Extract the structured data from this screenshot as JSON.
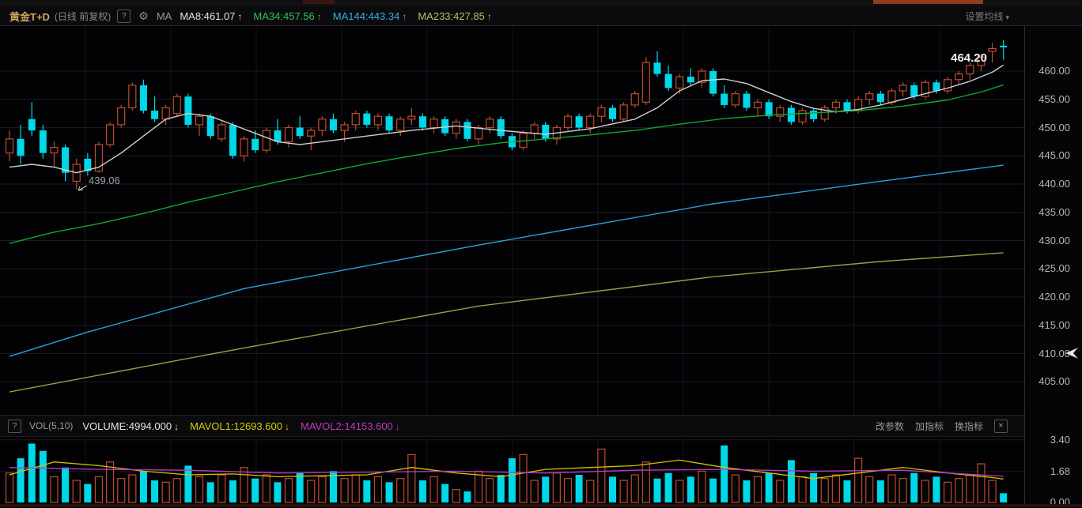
{
  "header": {
    "title": "黄金T+D",
    "subtitle": "(日线 前复权)",
    "help_label": "?",
    "gear_icon": "⚙",
    "ma_label": "MA",
    "ma_items": [
      {
        "label": "MA8:461.07",
        "arrow": "↑",
        "color": "#e6e6e6"
      },
      {
        "label": "MA34:457.56",
        "arrow": "↑",
        "color": "#2ec45a"
      },
      {
        "label": "MA144:443.34",
        "arrow": "↑",
        "color": "#36aee8"
      },
      {
        "label": "MA233:427.85",
        "arrow": "↑",
        "color": "#c5bd6b"
      }
    ],
    "settings_label": "设置均线",
    "settings_caret": "▾"
  },
  "volume_header": {
    "help_label": "?",
    "indicator_label": "VOL(5,10)",
    "items": [
      {
        "label": "VOLUME:4994.000",
        "arrow": "↓",
        "color": "#e6e6e6"
      },
      {
        "label": "MAVOL1:12693.600",
        "arrow": "↓",
        "color": "#d4ce00"
      },
      {
        "label": "MAVOL2:14153.600",
        "arrow": "↓",
        "color": "#c238c2"
      }
    ],
    "actions": [
      "改参数",
      "加指标",
      "换指标"
    ],
    "close_label": "×"
  },
  "annotations": {
    "last_price": "464.20",
    "low_label": "439.06"
  },
  "chart_data": {
    "type": "candlestick",
    "title": "黄金T+D 日线 前复权",
    "legend": [
      "MA8",
      "MA34",
      "MA144",
      "MA233",
      "VOLUME",
      "MAVOL1",
      "MAVOL2"
    ],
    "style": {
      "up_color": "#bf4a2e",
      "down_color": "#00d8e8",
      "grid_color": "#1b1b22",
      "vgrid_color": "#14141a"
    },
    "price_axis": {
      "ticks": [
        "460.00",
        "455.00",
        "450.00",
        "445.00",
        "440.00",
        "435.00",
        "430.00",
        "425.00",
        "420.00",
        "415.00",
        "410.00",
        "405.00"
      ],
      "values": [
        460,
        455,
        450,
        445,
        440,
        435,
        430,
        425,
        420,
        415,
        410,
        405
      ],
      "min": 400,
      "max": 467
    },
    "volume_axis": {
      "ticks": [
        "3.40",
        "1.68",
        "0.00"
      ],
      "values": [
        3.4,
        1.68,
        0.0
      ],
      "unit_scale": 10000
    },
    "last_close": 464.2,
    "shown_low": 439.06,
    "candles": [
      [
        445.5,
        449.5,
        444.0,
        448.0
      ],
      [
        448.0,
        450.5,
        443.5,
        445.0
      ],
      [
        451.5,
        454.5,
        448.5,
        449.5
      ],
      [
        449.5,
        450.5,
        444.5,
        445.5
      ],
      [
        445.5,
        447.5,
        443.0,
        446.5
      ],
      [
        446.5,
        447.0,
        440.5,
        442.0
      ],
      [
        440.5,
        444.5,
        439.06,
        443.5
      ],
      [
        444.5,
        445.5,
        441.5,
        442.3
      ],
      [
        442.3,
        447.5,
        442.0,
        447.0
      ],
      [
        447.0,
        451.0,
        446.5,
        450.5
      ],
      [
        450.5,
        454.0,
        450.0,
        453.5
      ],
      [
        453.5,
        458.0,
        453.0,
        457.5
      ],
      [
        457.5,
        458.5,
        452.5,
        453.0
      ],
      [
        453.0,
        455.5,
        451.0,
        451.5
      ],
      [
        451.5,
        454.0,
        450.5,
        453.5
      ],
      [
        452.5,
        456.0,
        452.0,
        455.5
      ],
      [
        455.5,
        456.0,
        450.0,
        450.5
      ],
      [
        450.5,
        452.5,
        448.5,
        452.0
      ],
      [
        452.0,
        452.5,
        448.0,
        448.5
      ],
      [
        448.0,
        451.0,
        447.5,
        450.5
      ],
      [
        450.5,
        451.0,
        444.5,
        445.0
      ],
      [
        445.0,
        448.5,
        444.0,
        448.0
      ],
      [
        448.0,
        449.5,
        445.5,
        446.0
      ],
      [
        446.0,
        450.0,
        445.5,
        449.5
      ],
      [
        449.5,
        451.5,
        447.0,
        447.5
      ],
      [
        447.5,
        450.5,
        446.5,
        450.0
      ],
      [
        450.0,
        452.0,
        448.0,
        448.5
      ],
      [
        448.5,
        450.0,
        446.0,
        449.5
      ],
      [
        449.5,
        452.0,
        448.5,
        451.5
      ],
      [
        451.5,
        452.5,
        449.0,
        449.5
      ],
      [
        449.5,
        451.0,
        447.5,
        450.5
      ],
      [
        450.5,
        453.0,
        449.5,
        452.5
      ],
      [
        452.5,
        453.0,
        450.0,
        450.5
      ],
      [
        450.5,
        452.5,
        449.5,
        452.0
      ],
      [
        452.0,
        452.5,
        449.0,
        449.5
      ],
      [
        449.5,
        452.0,
        448.5,
        451.5
      ],
      [
        451.5,
        453.5,
        450.5,
        452.0
      ],
      [
        452.0,
        452.5,
        449.5,
        450.0
      ],
      [
        450.0,
        452.0,
        449.0,
        451.5
      ],
      [
        451.5,
        452.0,
        448.5,
        449.0
      ],
      [
        449.0,
        451.5,
        448.0,
        451.0
      ],
      [
        451.0,
        451.5,
        447.5,
        448.0
      ],
      [
        448.0,
        450.5,
        447.0,
        450.0
      ],
      [
        450.0,
        452.0,
        449.0,
        451.5
      ],
      [
        451.5,
        452.0,
        448.0,
        448.5
      ],
      [
        448.5,
        449.0,
        446.0,
        446.5
      ],
      [
        446.5,
        449.5,
        446.0,
        449.0
      ],
      [
        449.0,
        451.0,
        448.0,
        450.5
      ],
      [
        450.5,
        451.0,
        447.5,
        448.0
      ],
      [
        448.0,
        450.5,
        447.0,
        450.0
      ],
      [
        450.0,
        452.5,
        449.5,
        452.0
      ],
      [
        452.0,
        452.5,
        449.5,
        450.0
      ],
      [
        450.0,
        452.5,
        449.0,
        452.0
      ],
      [
        452.0,
        454.0,
        451.0,
        453.5
      ],
      [
        453.5,
        454.0,
        451.0,
        451.5
      ],
      [
        451.5,
        454.5,
        451.0,
        454.0
      ],
      [
        454.0,
        456.5,
        453.5,
        456.0
      ],
      [
        454.5,
        462.5,
        454.0,
        461.5
      ],
      [
        461.5,
        463.5,
        459.0,
        459.5
      ],
      [
        459.5,
        461.0,
        456.5,
        457.0
      ],
      [
        457.0,
        459.5,
        456.0,
        459.0
      ],
      [
        459.0,
        460.5,
        457.5,
        458.0
      ],
      [
        458.0,
        460.5,
        457.0,
        460.0
      ],
      [
        460.0,
        460.5,
        455.5,
        456.0
      ],
      [
        456.0,
        457.5,
        453.5,
        454.0
      ],
      [
        454.0,
        456.5,
        453.5,
        456.0
      ],
      [
        456.0,
        456.5,
        453.0,
        453.5
      ],
      [
        453.5,
        455.0,
        452.0,
        454.5
      ],
      [
        454.5,
        455.0,
        451.5,
        452.0
      ],
      [
        452.0,
        454.0,
        451.0,
        453.5
      ],
      [
        453.5,
        454.0,
        450.5,
        451.0
      ],
      [
        451.0,
        453.5,
        450.5,
        453.0
      ],
      [
        453.0,
        453.5,
        451.0,
        451.5
      ],
      [
        451.5,
        454.0,
        451.0,
        453.5
      ],
      [
        453.5,
        455.0,
        452.5,
        454.5
      ],
      [
        454.5,
        455.0,
        452.5,
        453.0
      ],
      [
        453.0,
        455.5,
        452.5,
        455.0
      ],
      [
        455.0,
        456.5,
        454.0,
        456.0
      ],
      [
        456.0,
        456.5,
        454.0,
        454.5
      ],
      [
        454.5,
        457.0,
        454.0,
        456.5
      ],
      [
        456.5,
        458.0,
        455.5,
        457.5
      ],
      [
        457.5,
        458.0,
        455.0,
        455.5
      ],
      [
        455.5,
        458.5,
        455.0,
        458.0
      ],
      [
        458.0,
        458.5,
        456.0,
        456.5
      ],
      [
        456.5,
        459.0,
        456.0,
        458.5
      ],
      [
        458.5,
        460.0,
        457.5,
        459.5
      ],
      [
        459.5,
        461.5,
        458.5,
        461.0
      ],
      [
        461.0,
        463.0,
        460.0,
        462.5
      ],
      [
        463.5,
        465.0,
        461.5,
        464.0
      ],
      [
        464.5,
        465.5,
        462.0,
        464.2
      ]
    ],
    "volumes": [
      1.6,
      2.4,
      3.2,
      2.8,
      1.4,
      1.9,
      1.2,
      1.0,
      1.4,
      2.2,
      1.3,
      1.5,
      1.7,
      1.2,
      1.1,
      1.3,
      2.0,
      1.4,
      1.1,
      1.5,
      1.2,
      1.9,
      1.3,
      1.5,
      1.1,
      1.3,
      1.6,
      1.2,
      1.4,
      1.7,
      1.3,
      1.5,
      1.2,
      1.4,
      1.1,
      1.3,
      2.6,
      1.2,
      1.4,
      1.0,
      0.7,
      0.6,
      1.7,
      1.3,
      1.5,
      2.4,
      2.6,
      1.2,
      1.4,
      1.6,
      1.3,
      1.5,
      1.2,
      2.9,
      1.4,
      1.2,
      1.5,
      2.2,
      1.3,
      1.6,
      1.2,
      1.4,
      1.7,
      1.3,
      3.1,
      1.5,
      1.2,
      1.4,
      1.6,
      1.2,
      2.3,
      1.4,
      1.6,
      1.3,
      1.5,
      1.2,
      2.4,
      1.4,
      1.2,
      1.5,
      1.3,
      1.6,
      1.2,
      1.4,
      1.1,
      1.3,
      1.5,
      2.1,
      1.2,
      0.5
    ],
    "ma_lines": [
      {
        "name": "MA8",
        "color": "#d0d0d0",
        "points": [
          [
            0,
            443
          ],
          [
            2,
            443.5
          ],
          [
            4,
            443
          ],
          [
            6,
            442
          ],
          [
            8,
            443
          ],
          [
            10,
            445.5
          ],
          [
            12,
            448.5
          ],
          [
            14,
            451.5
          ],
          [
            16,
            452.5
          ],
          [
            18,
            452
          ],
          [
            20,
            450.5
          ],
          [
            22,
            449
          ],
          [
            24,
            447.5
          ],
          [
            26,
            447
          ],
          [
            28,
            447.5
          ],
          [
            32,
            448.5
          ],
          [
            36,
            449.5
          ],
          [
            40,
            450.3
          ],
          [
            44,
            449.5
          ],
          [
            48,
            448.8
          ],
          [
            52,
            449.8
          ],
          [
            56,
            451.5
          ],
          [
            58,
            453.5
          ],
          [
            60,
            456.5
          ],
          [
            62,
            458.3
          ],
          [
            64,
            458.6
          ],
          [
            66,
            457.8
          ],
          [
            68,
            456.2
          ],
          [
            70,
            454.6
          ],
          [
            72,
            453.4
          ],
          [
            74,
            452.8
          ],
          [
            76,
            453.2
          ],
          [
            78,
            454
          ],
          [
            80,
            455
          ],
          [
            82,
            456
          ],
          [
            84,
            457
          ],
          [
            86,
            458.2
          ],
          [
            88,
            459.8
          ],
          [
            89,
            461.07
          ]
        ]
      },
      {
        "name": "MA34",
        "color": "#0da832",
        "points": [
          [
            0,
            429.5
          ],
          [
            4,
            431.5
          ],
          [
            8,
            433
          ],
          [
            12,
            434.8
          ],
          [
            16,
            436.8
          ],
          [
            20,
            438.6
          ],
          [
            24,
            440.4
          ],
          [
            28,
            442
          ],
          [
            32,
            443.6
          ],
          [
            36,
            445
          ],
          [
            40,
            446.3
          ],
          [
            44,
            447.3
          ],
          [
            48,
            448
          ],
          [
            52,
            448.7
          ],
          [
            56,
            449.5
          ],
          [
            60,
            450.6
          ],
          [
            64,
            451.6
          ],
          [
            68,
            452.2
          ],
          [
            72,
            452.6
          ],
          [
            76,
            453
          ],
          [
            80,
            453.8
          ],
          [
            84,
            454.9
          ],
          [
            87,
            456.3
          ],
          [
            89,
            457.56
          ]
        ]
      },
      {
        "name": "MA144",
        "color": "#2e9fd6",
        "points": [
          [
            0,
            409.5
          ],
          [
            7,
            413.8
          ],
          [
            21,
            421.5
          ],
          [
            42,
            429.2
          ],
          [
            63,
            436.5
          ],
          [
            78,
            440.5
          ],
          [
            89,
            443.34
          ]
        ]
      },
      {
        "name": "MA233",
        "color": "#a09a4a",
        "points": [
          [
            0,
            403.2
          ],
          [
            21,
            411
          ],
          [
            42,
            418.4
          ],
          [
            63,
            423.6
          ],
          [
            78,
            426.3
          ],
          [
            89,
            427.85
          ]
        ]
      }
    ],
    "mavol_lines": [
      {
        "name": "MAVOL1",
        "color": "#cfc400",
        "points": [
          [
            0,
            1.5
          ],
          [
            4,
            2.2
          ],
          [
            8,
            2.0
          ],
          [
            12,
            1.7
          ],
          [
            16,
            1.5
          ],
          [
            20,
            1.55
          ],
          [
            24,
            1.4
          ],
          [
            28,
            1.45
          ],
          [
            32,
            1.5
          ],
          [
            36,
            1.9
          ],
          [
            40,
            1.6
          ],
          [
            44,
            1.4
          ],
          [
            48,
            1.8
          ],
          [
            52,
            1.9
          ],
          [
            56,
            2.0
          ],
          [
            60,
            2.3
          ],
          [
            64,
            1.9
          ],
          [
            68,
            1.6
          ],
          [
            72,
            1.3
          ],
          [
            76,
            1.6
          ],
          [
            80,
            1.9
          ],
          [
            84,
            1.6
          ],
          [
            88,
            1.35
          ],
          [
            89,
            1.27
          ]
        ]
      },
      {
        "name": "MAVOL2",
        "color": "#c23ac2",
        "points": [
          [
            0,
            1.9
          ],
          [
            8,
            1.8
          ],
          [
            16,
            1.75
          ],
          [
            24,
            1.6
          ],
          [
            32,
            1.65
          ],
          [
            40,
            1.7
          ],
          [
            48,
            1.6
          ],
          [
            56,
            1.75
          ],
          [
            64,
            1.8
          ],
          [
            72,
            1.7
          ],
          [
            80,
            1.75
          ],
          [
            84,
            1.6
          ],
          [
            89,
            1.42
          ]
        ]
      }
    ]
  }
}
